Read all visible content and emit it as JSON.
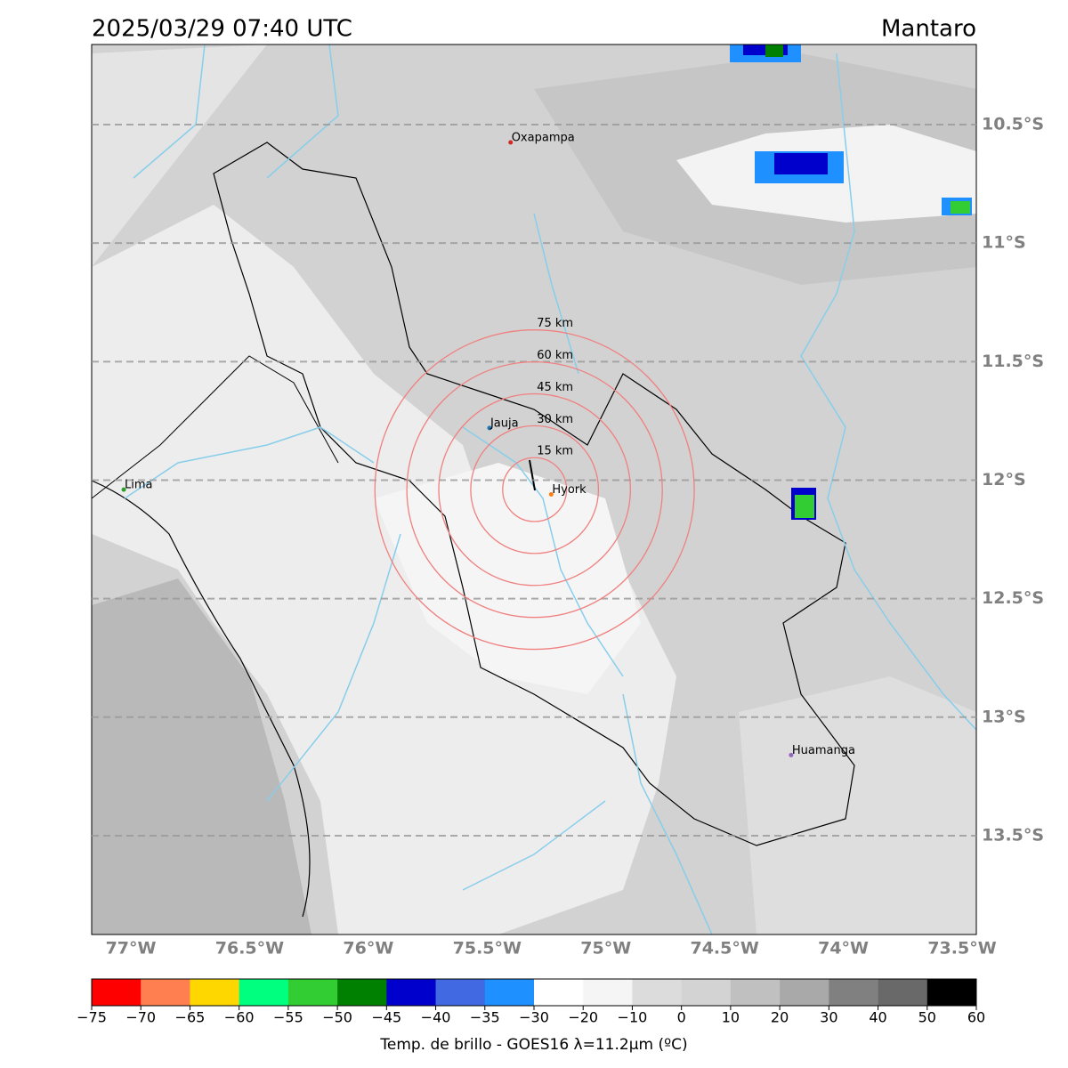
{
  "map": {
    "title": "2025/03/29 07:40 UTC",
    "region": "Mantaro",
    "lonlim": [
      -77.165,
      -73.44
    ],
    "latlim": [
      -13.917,
      -10.162
    ],
    "lonticks": [
      {
        "value": -77,
        "label": "77°W"
      },
      {
        "value": -76.5,
        "label": "76.5°W"
      },
      {
        "value": -76,
        "label": "76°W"
      },
      {
        "value": -75.5,
        "label": "75.5°W"
      },
      {
        "value": -75,
        "label": "75°W"
      },
      {
        "value": -74.5,
        "label": "74.5°W"
      },
      {
        "value": -74,
        "label": "74°W"
      },
      {
        "value": -73.5,
        "label": "73.5°W"
      }
    ],
    "latticks": [
      {
        "value": -10.5,
        "label": "10.5°S"
      },
      {
        "value": -11,
        "label": "11°S"
      },
      {
        "value": -11.5,
        "label": "11.5°S"
      },
      {
        "value": -12,
        "label": "12°S"
      },
      {
        "value": -12.5,
        "label": "12.5°S"
      },
      {
        "value": -13,
        "label": "13°S"
      },
      {
        "value": -13.5,
        "label": "13.5°S"
      }
    ],
    "grid": true,
    "cities": [
      {
        "name": "Oxapampa",
        "lon": -75.401,
        "lat": -10.575,
        "color": "#d62728"
      },
      {
        "name": "Jauja",
        "lon": -75.49,
        "lat": -11.78,
        "color": "#1f77b4"
      },
      {
        "name": "Hyork",
        "lon": -75.23,
        "lat": -12.06,
        "color": "#ff7f0e"
      },
      {
        "name": "Lima",
        "lon": -77.03,
        "lat": -12.04,
        "color": "#2ca02c"
      },
      {
        "name": "Huamanga",
        "lon": -74.22,
        "lat": -13.16,
        "color": "#9467bd"
      }
    ],
    "rings": {
      "center_lon": -75.3,
      "center_lat": -12.04,
      "color": "#f08080",
      "radii_km": [
        15,
        30,
        45,
        60,
        75
      ],
      "value_labels": [
        "15 km",
        "30 km",
        "45 km",
        "60 km",
        "75 km"
      ]
    },
    "colorbar": {
      "label": "Temp. de brillo - GOES16 λ=11.2μm (ºC)",
      "bounds": [
        -75,
        -70,
        -65,
        -60,
        -55,
        -50,
        -45,
        -40,
        -35,
        -30,
        -20,
        -10,
        0,
        10,
        20,
        30,
        40,
        50,
        60
      ],
      "colors": [
        "#ff0000",
        "#ff7f50",
        "#ffd700",
        "#00ff7f",
        "#32cd32",
        "#008000",
        "#0000cd",
        "#4169e1",
        "#1e90ff",
        "#ffffff",
        "#f5f5f5",
        "#dcdcdc",
        "#d3d3d3",
        "#c0c0c0",
        "#a9a9a9",
        "#808080",
        "#696969",
        "#000000"
      ],
      "ticks": [
        {
          "value": -75,
          "label": "−75"
        },
        {
          "value": -70,
          "label": "−70"
        },
        {
          "value": -65,
          "label": "−65"
        },
        {
          "value": -60,
          "label": "−60"
        },
        {
          "value": -55,
          "label": "−55"
        },
        {
          "value": -50,
          "label": "−50"
        },
        {
          "value": -45,
          "label": "−45"
        },
        {
          "value": -40,
          "label": "−40"
        },
        {
          "value": -35,
          "label": "−35"
        },
        {
          "value": -30,
          "label": "−30"
        },
        {
          "value": -20,
          "label": "−20"
        },
        {
          "value": -10,
          "label": "−10"
        },
        0,
        10,
        20,
        30,
        40,
        50,
        60
      ]
    }
  }
}
